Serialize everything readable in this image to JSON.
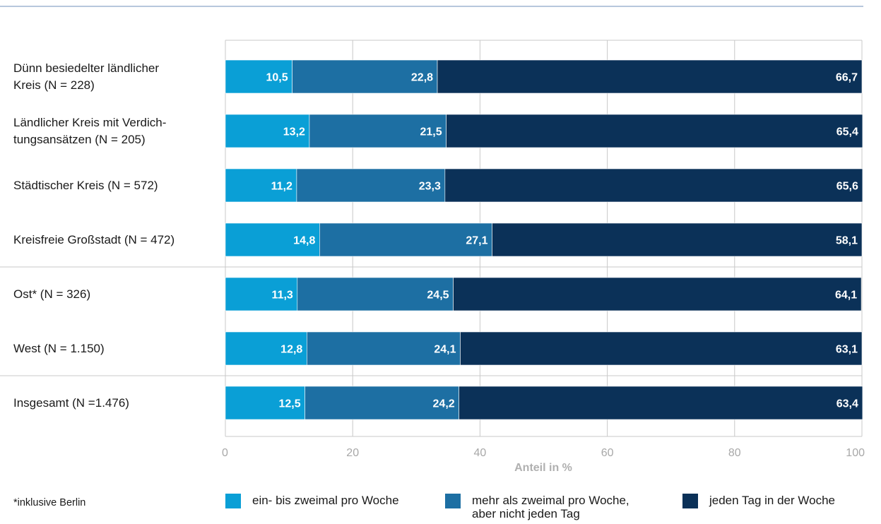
{
  "chart_data": {
    "type": "bar",
    "orientation": "horizontal",
    "stacked": true,
    "categories": [
      "Dünn besiedelter ländlicher\nKreis (N = 228)",
      "Ländlicher Kreis mit Verdich-\ntungsansätzen (N = 205)",
      "Städtischer Kreis (N = 572)",
      "Kreisfreie Großstadt (N = 472)",
      "Ost* (N = 326)",
      "West (N = 1.150)",
      "Insgesamt (N =1.476)"
    ],
    "series": [
      {
        "name": "ein- bis zweimal pro Woche",
        "color": "#0a9fd6",
        "values": [
          10.5,
          13.2,
          11.2,
          14.8,
          11.3,
          12.8,
          12.5
        ],
        "labels": [
          "10,5",
          "13,2",
          "11,2",
          "14,8",
          "11,3",
          "12,8",
          "12,5"
        ]
      },
      {
        "name": "mehr als zweimal pro Woche,\naber nicht jeden Tag",
        "color": "#1d6fa3",
        "values": [
          22.8,
          21.5,
          23.3,
          27.1,
          24.5,
          24.1,
          24.2
        ],
        "labels": [
          "22,8",
          "21,5",
          "23,3",
          "27,1",
          "24,5",
          "24,1",
          "24,2"
        ]
      },
      {
        "name": "jeden Tag in der Woche",
        "color": "#0b3158",
        "values": [
          66.7,
          65.4,
          65.6,
          58.1,
          64.1,
          63.1,
          63.4
        ],
        "labels": [
          "66,7",
          "65,4",
          "65,6",
          "58,1",
          "64,1",
          "63,1",
          "63,4"
        ]
      }
    ],
    "xlabel": "Anteil in %",
    "xlim": [
      0,
      100
    ],
    "xticks": [
      0,
      20,
      40,
      60,
      80,
      100
    ],
    "xtick_labels": [
      "0",
      "20",
      "40",
      "60",
      "80",
      "100"
    ],
    "grid": true,
    "group_separators_after": [
      3,
      5
    ],
    "legend_position": "bottom",
    "footnote": "*inklusive Berlin"
  }
}
